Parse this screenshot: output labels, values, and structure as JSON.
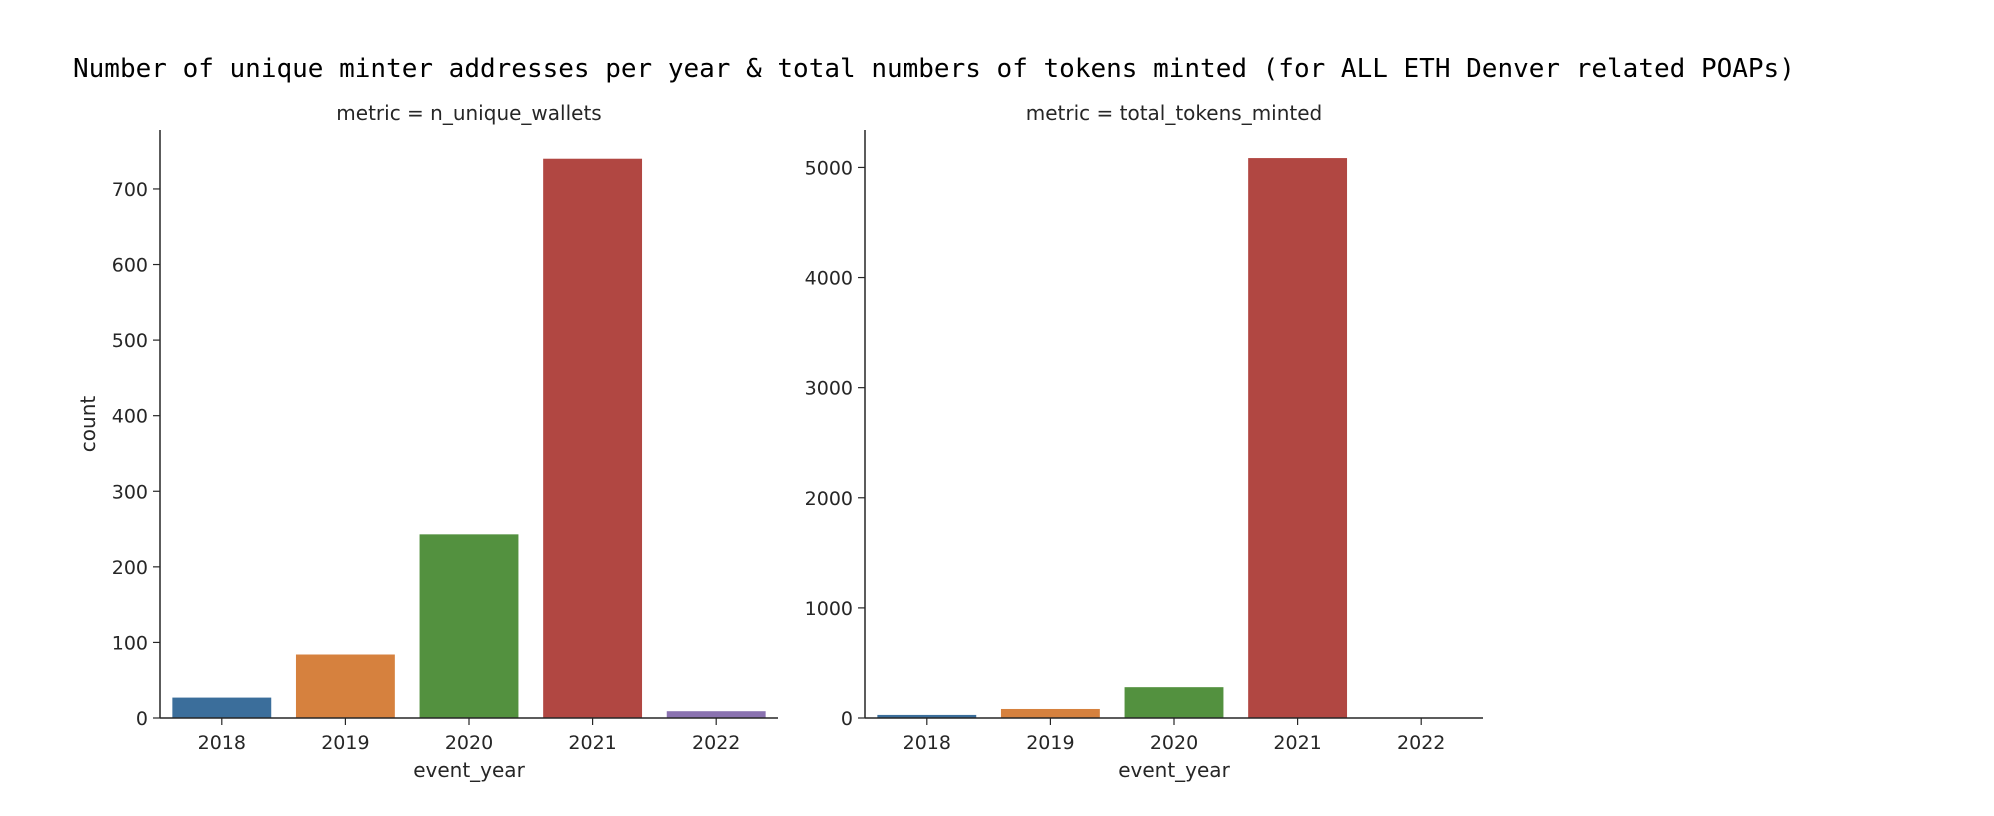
{
  "title": "Number of unique minter addresses per year & total numbers of tokens minted (for ALL ETH Denver related POAPs)",
  "colors": [
    "#3b6e9b",
    "#d6813e",
    "#53913f",
    "#b14742",
    "#8a72b0"
  ],
  "chart_data": [
    {
      "type": "bar",
      "title": "metric = n_unique_wallets",
      "xlabel": "event_year",
      "ylabel": "count",
      "categories": [
        "2018",
        "2019",
        "2020",
        "2021",
        "2022"
      ],
      "values": [
        27,
        84,
        243,
        740,
        9
      ],
      "ylim": [
        0,
        778
      ],
      "yticks": [
        0,
        100,
        200,
        300,
        400,
        500,
        600,
        700
      ],
      "grid": false
    },
    {
      "type": "bar",
      "title": "metric = total_tokens_minted",
      "xlabel": "event_year",
      "ylabel": "",
      "categories": [
        "2018",
        "2019",
        "2020",
        "2021",
        "2022"
      ],
      "values": [
        28,
        82,
        280,
        5085,
        3
      ],
      "ylim": [
        0,
        5340
      ],
      "yticks": [
        0,
        1000,
        2000,
        3000,
        4000,
        5000
      ],
      "grid": false
    }
  ]
}
